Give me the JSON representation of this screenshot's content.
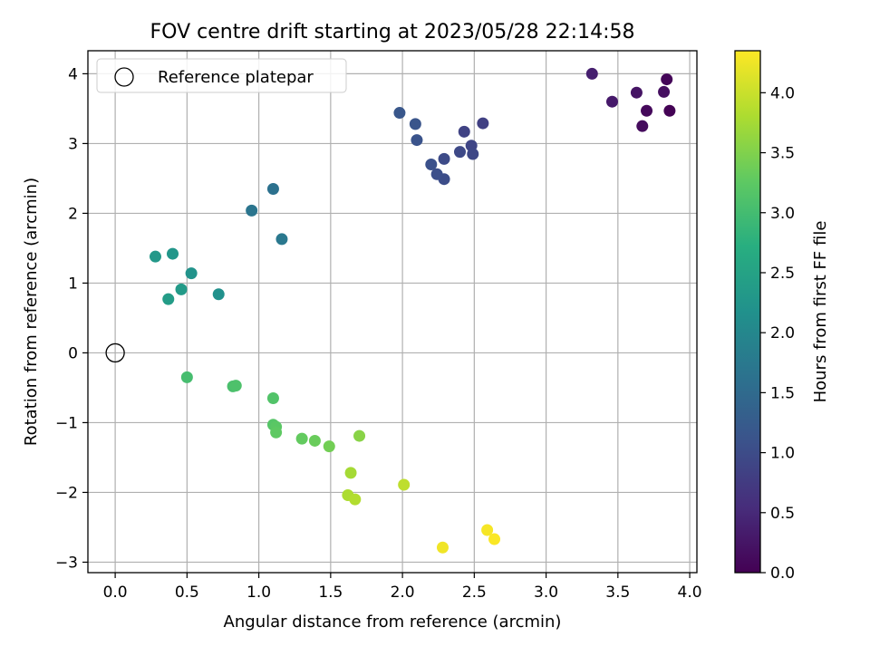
{
  "chart_data": {
    "type": "scatter",
    "title": "FOV centre drift starting at 2023/05/28 22:14:58",
    "xlabel": "Angular distance from reference (arcmin)",
    "ylabel": "Rotation from reference (arcmin)",
    "xlim": [
      -0.19,
      4.05
    ],
    "ylim": [
      -3.15,
      4.33
    ],
    "xticks": [
      0.0,
      0.5,
      1.0,
      1.5,
      2.0,
      2.5,
      3.0,
      3.5,
      4.0
    ],
    "xtick_labels": [
      "0.0",
      "0.5",
      "1.0",
      "1.5",
      "2.0",
      "2.5",
      "3.0",
      "3.5",
      "4.0"
    ],
    "yticks": [
      -3,
      -2,
      -1,
      0,
      1,
      2,
      3,
      4
    ],
    "ytick_labels": [
      "−3",
      "−2",
      "−1",
      "0",
      "1",
      "2",
      "3",
      "4"
    ],
    "grid": true,
    "legend": {
      "position": "top-left",
      "entries": [
        "Reference platepar"
      ]
    },
    "reference_point": {
      "x": 0.0,
      "y": 0.0,
      "label": "Reference platepar"
    },
    "colorbar": {
      "label": "Hours from first FF file",
      "colormap": "viridis",
      "range": [
        0.0,
        4.35
      ],
      "ticks": [
        0.0,
        0.5,
        1.0,
        1.5,
        2.0,
        2.5,
        3.0,
        3.5,
        4.0
      ],
      "tick_labels": [
        "0.0",
        "0.5",
        "1.0",
        "1.5",
        "2.0",
        "2.5",
        "3.0",
        "3.5",
        "4.0"
      ]
    },
    "points": [
      {
        "x": 3.86,
        "y": 3.47,
        "c": 0.02
      },
      {
        "x": 3.84,
        "y": 3.92,
        "c": 0.06
      },
      {
        "x": 3.7,
        "y": 3.47,
        "c": 0.1
      },
      {
        "x": 3.67,
        "y": 3.25,
        "c": 0.13
      },
      {
        "x": 3.82,
        "y": 3.74,
        "c": 0.17
      },
      {
        "x": 3.63,
        "y": 3.73,
        "c": 0.23
      },
      {
        "x": 3.46,
        "y": 3.6,
        "c": 0.3
      },
      {
        "x": 3.32,
        "y": 4.0,
        "c": 0.37
      },
      {
        "x": 2.56,
        "y": 3.29,
        "c": 0.82
      },
      {
        "x": 2.43,
        "y": 3.17,
        "c": 0.86
      },
      {
        "x": 2.48,
        "y": 2.97,
        "c": 0.9
      },
      {
        "x": 2.49,
        "y": 2.85,
        "c": 0.93
      },
      {
        "x": 2.4,
        "y": 2.88,
        "c": 0.96
      },
      {
        "x": 2.29,
        "y": 2.78,
        "c": 0.99
      },
      {
        "x": 2.29,
        "y": 2.49,
        "c": 1.02
      },
      {
        "x": 2.24,
        "y": 2.56,
        "c": 1.05
      },
      {
        "x": 2.2,
        "y": 2.7,
        "c": 1.08
      },
      {
        "x": 2.1,
        "y": 3.05,
        "c": 1.11
      },
      {
        "x": 2.09,
        "y": 3.28,
        "c": 1.14
      },
      {
        "x": 1.98,
        "y": 3.44,
        "c": 1.17
      },
      {
        "x": 1.1,
        "y": 2.35,
        "c": 1.62
      },
      {
        "x": 0.95,
        "y": 2.04,
        "c": 1.68
      },
      {
        "x": 1.16,
        "y": 1.63,
        "c": 1.74
      },
      {
        "x": 0.72,
        "y": 0.84,
        "c": 2.18
      },
      {
        "x": 0.53,
        "y": 1.14,
        "c": 2.22
      },
      {
        "x": 0.4,
        "y": 1.42,
        "c": 2.26
      },
      {
        "x": 0.28,
        "y": 1.38,
        "c": 2.3
      },
      {
        "x": 0.46,
        "y": 0.91,
        "c": 2.34
      },
      {
        "x": 0.37,
        "y": 0.77,
        "c": 2.38
      },
      {
        "x": 0.5,
        "y": -0.35,
        "c": 3.03
      },
      {
        "x": 0.82,
        "y": -0.48,
        "c": 3.07
      },
      {
        "x": 0.84,
        "y": -0.47,
        "c": 3.1
      },
      {
        "x": 1.1,
        "y": -0.65,
        "c": 3.14
      },
      {
        "x": 1.1,
        "y": -1.03,
        "c": 3.18
      },
      {
        "x": 1.12,
        "y": -1.06,
        "c": 3.22
      },
      {
        "x": 1.12,
        "y": -1.14,
        "c": 3.26
      },
      {
        "x": 1.3,
        "y": -1.23,
        "c": 3.3
      },
      {
        "x": 1.39,
        "y": -1.26,
        "c": 3.34
      },
      {
        "x": 1.49,
        "y": -1.34,
        "c": 3.4
      },
      {
        "x": 1.7,
        "y": -1.19,
        "c": 3.56
      },
      {
        "x": 1.64,
        "y": -1.72,
        "c": 3.75
      },
      {
        "x": 1.62,
        "y": -2.04,
        "c": 3.8
      },
      {
        "x": 1.67,
        "y": -2.1,
        "c": 3.84
      },
      {
        "x": 2.01,
        "y": -1.89,
        "c": 3.92
      },
      {
        "x": 2.28,
        "y": -2.79,
        "c": 4.26
      },
      {
        "x": 2.59,
        "y": -2.54,
        "c": 4.3
      },
      {
        "x": 2.64,
        "y": -2.67,
        "c": 4.33
      }
    ]
  }
}
